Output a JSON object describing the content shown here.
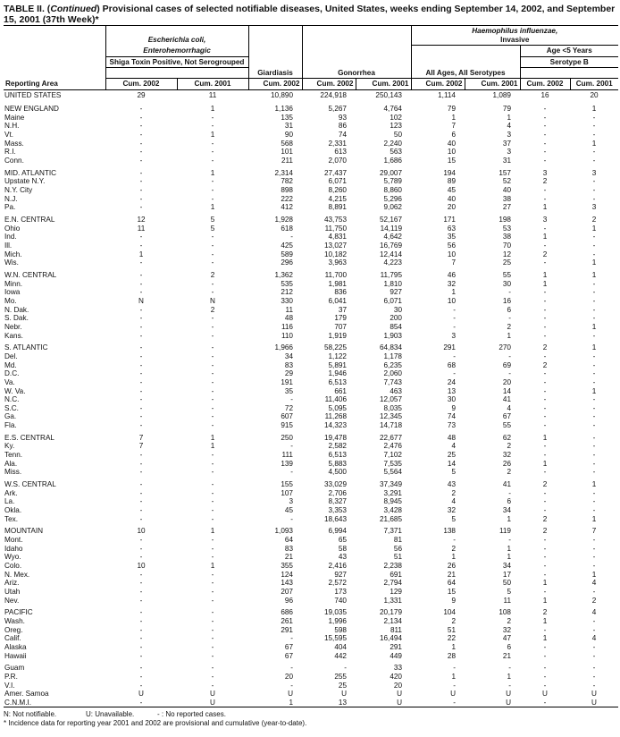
{
  "title": {
    "prefix": "TABLE II. (",
    "continued": "Continued",
    "text": ") Provisional cases of selected notifiable diseases, United States, weeks ending September 14, 2002, and September 15, 2001 (37th Week)*"
  },
  "headers": {
    "ecoli_line1": "Escherichia coli,",
    "ecoli_line2": "Enterohemorrhagic",
    "ecoli_sub": "Shiga Toxin Positive, Not Serogrouped",
    "giardiasis": "Giardiasis",
    "gonorrhea": "Gonorrhea",
    "hi_line1": "Haemophilus influenzae,",
    "hi_line2": "Invasive",
    "all_ages": "All Ages, All Serotypes",
    "age_lt5": "Age <5 Years",
    "serotype_b": "Serotype B",
    "reporting_area": "Reporting Area",
    "cum2002": "Cum. 2002",
    "cum2001": "Cum. 2001"
  },
  "us_row": [
    "UNITED STATES",
    "29",
    "11",
    "10,890",
    "224,918",
    "250,143",
    "1,114",
    "1,089",
    "16",
    "20"
  ],
  "groups": [
    [
      [
        "NEW ENGLAND",
        "-",
        "1",
        "1,136",
        "5,267",
        "4,764",
        "79",
        "79",
        "-",
        "1"
      ],
      [
        "Maine",
        "-",
        "-",
        "135",
        "93",
        "102",
        "1",
        "1",
        "-",
        "-"
      ],
      [
        "N.H.",
        "-",
        "-",
        "31",
        "86",
        "123",
        "7",
        "4",
        "-",
        "-"
      ],
      [
        "Vt.",
        "-",
        "1",
        "90",
        "74",
        "50",
        "6",
        "3",
        "-",
        "-"
      ],
      [
        "Mass.",
        "-",
        "-",
        "568",
        "2,331",
        "2,240",
        "40",
        "37",
        "-",
        "1"
      ],
      [
        "R.I.",
        "-",
        "-",
        "101",
        "613",
        "563",
        "10",
        "3",
        "-",
        "-"
      ],
      [
        "Conn.",
        "-",
        "-",
        "211",
        "2,070",
        "1,686",
        "15",
        "31",
        "-",
        "-"
      ]
    ],
    [
      [
        "MID. ATLANTIC",
        "-",
        "1",
        "2,314",
        "27,437",
        "29,007",
        "194",
        "157",
        "3",
        "3"
      ],
      [
        "Upstate N.Y.",
        "-",
        "-",
        "782",
        "6,071",
        "5,789",
        "89",
        "52",
        "2",
        "-"
      ],
      [
        "N.Y. City",
        "-",
        "-",
        "898",
        "8,260",
        "8,860",
        "45",
        "40",
        "-",
        "-"
      ],
      [
        "N.J.",
        "-",
        "-",
        "222",
        "4,215",
        "5,296",
        "40",
        "38",
        "-",
        "-"
      ],
      [
        "Pa.",
        "-",
        "1",
        "412",
        "8,891",
        "9,062",
        "20",
        "27",
        "1",
        "3"
      ]
    ],
    [
      [
        "E.N. CENTRAL",
        "12",
        "5",
        "1,928",
        "43,753",
        "52,167",
        "171",
        "198",
        "3",
        "2"
      ],
      [
        "Ohio",
        "11",
        "5",
        "618",
        "11,750",
        "14,119",
        "63",
        "53",
        "-",
        "1"
      ],
      [
        "Ind.",
        "-",
        "-",
        "-",
        "4,831",
        "4,642",
        "35",
        "38",
        "1",
        "-"
      ],
      [
        "Ill.",
        "-",
        "-",
        "425",
        "13,027",
        "16,769",
        "56",
        "70",
        "-",
        "-"
      ],
      [
        "Mich.",
        "1",
        "-",
        "589",
        "10,182",
        "12,414",
        "10",
        "12",
        "2",
        "-"
      ],
      [
        "Wis.",
        "-",
        "-",
        "296",
        "3,963",
        "4,223",
        "7",
        "25",
        "-",
        "1"
      ]
    ],
    [
      [
        "W.N. CENTRAL",
        "-",
        "2",
        "1,362",
        "11,700",
        "11,795",
        "46",
        "55",
        "1",
        "1"
      ],
      [
        "Minn.",
        "-",
        "-",
        "535",
        "1,981",
        "1,810",
        "32",
        "30",
        "1",
        "-"
      ],
      [
        "Iowa",
        "-",
        "-",
        "212",
        "836",
        "927",
        "1",
        "-",
        "-",
        "-"
      ],
      [
        "Mo.",
        "N",
        "N",
        "330",
        "6,041",
        "6,071",
        "10",
        "16",
        "-",
        "-"
      ],
      [
        "N. Dak.",
        "-",
        "2",
        "11",
        "37",
        "30",
        "-",
        "6",
        "-",
        "-"
      ],
      [
        "S. Dak.",
        "-",
        "-",
        "48",
        "179",
        "200",
        "-",
        "-",
        "-",
        "-"
      ],
      [
        "Nebr.",
        "-",
        "-",
        "116",
        "707",
        "854",
        "-",
        "2",
        "-",
        "1"
      ],
      [
        "Kans.",
        "-",
        "-",
        "110",
        "1,919",
        "1,903",
        "3",
        "1",
        "-",
        "-"
      ]
    ],
    [
      [
        "S. ATLANTIC",
        "-",
        "-",
        "1,966",
        "58,225",
        "64,834",
        "291",
        "270",
        "2",
        "1"
      ],
      [
        "Del.",
        "-",
        "-",
        "34",
        "1,122",
        "1,178",
        "-",
        "-",
        "-",
        "-"
      ],
      [
        "Md.",
        "-",
        "-",
        "83",
        "5,891",
        "6,235",
        "68",
        "69",
        "2",
        "-"
      ],
      [
        "D.C.",
        "-",
        "-",
        "29",
        "1,946",
        "2,060",
        "-",
        "-",
        "-",
        "-"
      ],
      [
        "Va.",
        "-",
        "-",
        "191",
        "6,513",
        "7,743",
        "24",
        "20",
        "-",
        "-"
      ],
      [
        "W. Va.",
        "-",
        "-",
        "35",
        "661",
        "463",
        "13",
        "14",
        "-",
        "1"
      ],
      [
        "N.C.",
        "-",
        "-",
        "-",
        "11,406",
        "12,057",
        "30",
        "41",
        "-",
        "-"
      ],
      [
        "S.C.",
        "-",
        "-",
        "72",
        "5,095",
        "8,035",
        "9",
        "4",
        "-",
        "-"
      ],
      [
        "Ga.",
        "-",
        "-",
        "607",
        "11,268",
        "12,345",
        "74",
        "67",
        "-",
        "-"
      ],
      [
        "Fla.",
        "-",
        "-",
        "915",
        "14,323",
        "14,718",
        "73",
        "55",
        "-",
        "-"
      ]
    ],
    [
      [
        "E.S. CENTRAL",
        "7",
        "1",
        "250",
        "19,478",
        "22,677",
        "48",
        "62",
        "1",
        "-"
      ],
      [
        "Ky.",
        "7",
        "1",
        "-",
        "2,582",
        "2,476",
        "4",
        "2",
        "-",
        "-"
      ],
      [
        "Tenn.",
        "-",
        "-",
        "111",
        "6,513",
        "7,102",
        "25",
        "32",
        "-",
        "-"
      ],
      [
        "Ala.",
        "-",
        "-",
        "139",
        "5,883",
        "7,535",
        "14",
        "26",
        "1",
        "-"
      ],
      [
        "Miss.",
        "-",
        "-",
        "-",
        "4,500",
        "5,564",
        "5",
        "2",
        "-",
        "-"
      ]
    ],
    [
      [
        "W.S. CENTRAL",
        "-",
        "-",
        "155",
        "33,029",
        "37,349",
        "43",
        "41",
        "2",
        "1"
      ],
      [
        "Ark.",
        "-",
        "-",
        "107",
        "2,706",
        "3,291",
        "2",
        "-",
        "-",
        "-"
      ],
      [
        "La.",
        "-",
        "-",
        "3",
        "8,327",
        "8,945",
        "4",
        "6",
        "-",
        "-"
      ],
      [
        "Okla.",
        "-",
        "-",
        "45",
        "3,353",
        "3,428",
        "32",
        "34",
        "-",
        "-"
      ],
      [
        "Tex.",
        "-",
        "-",
        "-",
        "18,643",
        "21,685",
        "5",
        "1",
        "2",
        "1"
      ]
    ],
    [
      [
        "MOUNTAIN",
        "10",
        "1",
        "1,093",
        "6,994",
        "7,371",
        "138",
        "119",
        "2",
        "7"
      ],
      [
        "Mont.",
        "-",
        "-",
        "64",
        "65",
        "81",
        "-",
        "-",
        "-",
        "-"
      ],
      [
        "Idaho",
        "-",
        "-",
        "83",
        "58",
        "56",
        "2",
        "1",
        "-",
        "-"
      ],
      [
        "Wyo.",
        "-",
        "-",
        "21",
        "43",
        "51",
        "1",
        "1",
        "-",
        "-"
      ],
      [
        "Colo.",
        "10",
        "1",
        "355",
        "2,416",
        "2,238",
        "26",
        "34",
        "-",
        "-"
      ],
      [
        "N. Mex.",
        "-",
        "-",
        "124",
        "927",
        "691",
        "21",
        "17",
        "-",
        "1"
      ],
      [
        "Ariz.",
        "-",
        "-",
        "143",
        "2,572",
        "2,794",
        "64",
        "50",
        "1",
        "4"
      ],
      [
        "Utah",
        "-",
        "-",
        "207",
        "173",
        "129",
        "15",
        "5",
        "-",
        "-"
      ],
      [
        "Nev.",
        "-",
        "-",
        "96",
        "740",
        "1,331",
        "9",
        "11",
        "1",
        "2"
      ]
    ],
    [
      [
        "PACIFIC",
        "-",
        "-",
        "686",
        "19,035",
        "20,179",
        "104",
        "108",
        "2",
        "4"
      ],
      [
        "Wash.",
        "-",
        "-",
        "261",
        "1,996",
        "2,134",
        "2",
        "2",
        "1",
        "-"
      ],
      [
        "Oreg.",
        "-",
        "-",
        "291",
        "598",
        "811",
        "51",
        "32",
        "-",
        "-"
      ],
      [
        "Calif.",
        "-",
        "-",
        "-",
        "15,595",
        "16,494",
        "22",
        "47",
        "1",
        "4"
      ],
      [
        "Alaska",
        "-",
        "-",
        "67",
        "404",
        "291",
        "1",
        "6",
        "-",
        "-"
      ],
      [
        "Hawaii",
        "-",
        "-",
        "67",
        "442",
        "449",
        "28",
        "21",
        "-",
        "-"
      ]
    ],
    [
      [
        "Guam",
        "-",
        "-",
        "-",
        "-",
        "33",
        "-",
        "-",
        "-",
        "-"
      ],
      [
        "P.R.",
        "-",
        "-",
        "20",
        "255",
        "420",
        "1",
        "1",
        "-",
        "-"
      ],
      [
        "V.I.",
        "-",
        "-",
        "-",
        "25",
        "20",
        "-",
        "-",
        "-",
        "-"
      ],
      [
        "Amer. Samoa",
        "U",
        "U",
        "U",
        "U",
        "U",
        "U",
        "U",
        "U",
        "U"
      ],
      [
        "C.N.M.I.",
        "-",
        "U",
        "1",
        "13",
        "U",
        "-",
        "U",
        "-",
        "U"
      ]
    ]
  ],
  "footnotes": {
    "n": "N: Not notifiable.",
    "u": "U: Unavailable.",
    "dash": "- : No reported cases.",
    "star": "* Incidence data for reporting year 2001 and 2002 are provisional and cumulative (year-to-date)."
  }
}
